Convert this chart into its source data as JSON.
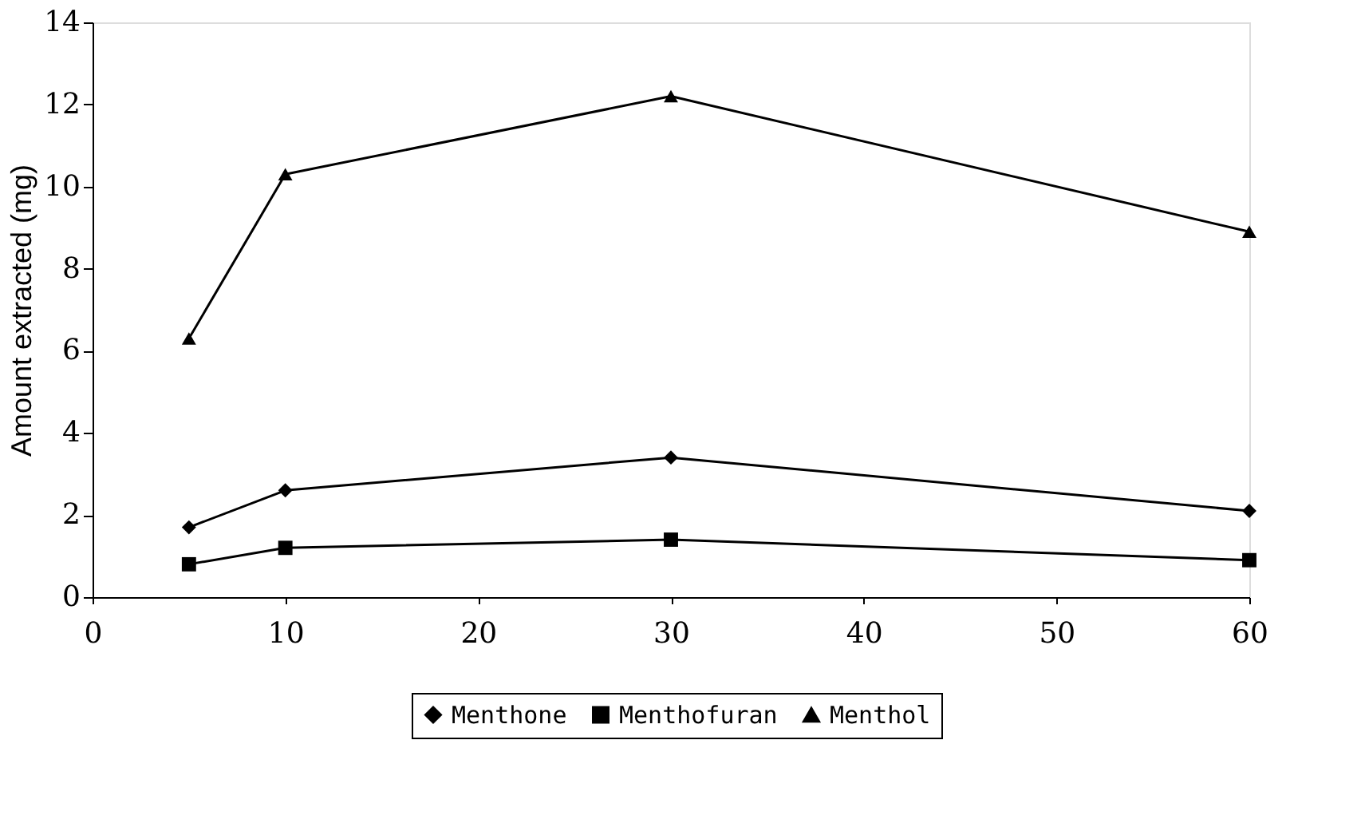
{
  "chart_data": {
    "type": "line",
    "ylabel": "Amount extracted (mg)",
    "x": [
      5,
      10,
      30,
      60
    ],
    "xlim": [
      0,
      60
    ],
    "xticks": [
      0,
      10,
      20,
      30,
      40,
      50,
      60
    ],
    "ylim": [
      0,
      14
    ],
    "yticks": [
      0,
      2,
      4,
      6,
      8,
      10,
      12,
      14
    ],
    "grid": false,
    "legend": "bottom",
    "line_style": "solid",
    "series": [
      {
        "name": "Menthone",
        "color": "#000000",
        "marker": "diamond",
        "values": [
          1.7,
          2.6,
          3.4,
          2.1
        ]
      },
      {
        "name": "Menthofuran",
        "color": "#000000",
        "marker": "square",
        "values": [
          0.8,
          1.2,
          1.4,
          0.9
        ]
      },
      {
        "name": "Menthol",
        "color": "#000000",
        "marker": "triangle",
        "values": [
          6.3,
          10.3,
          12.2,
          8.9
        ]
      }
    ]
  }
}
